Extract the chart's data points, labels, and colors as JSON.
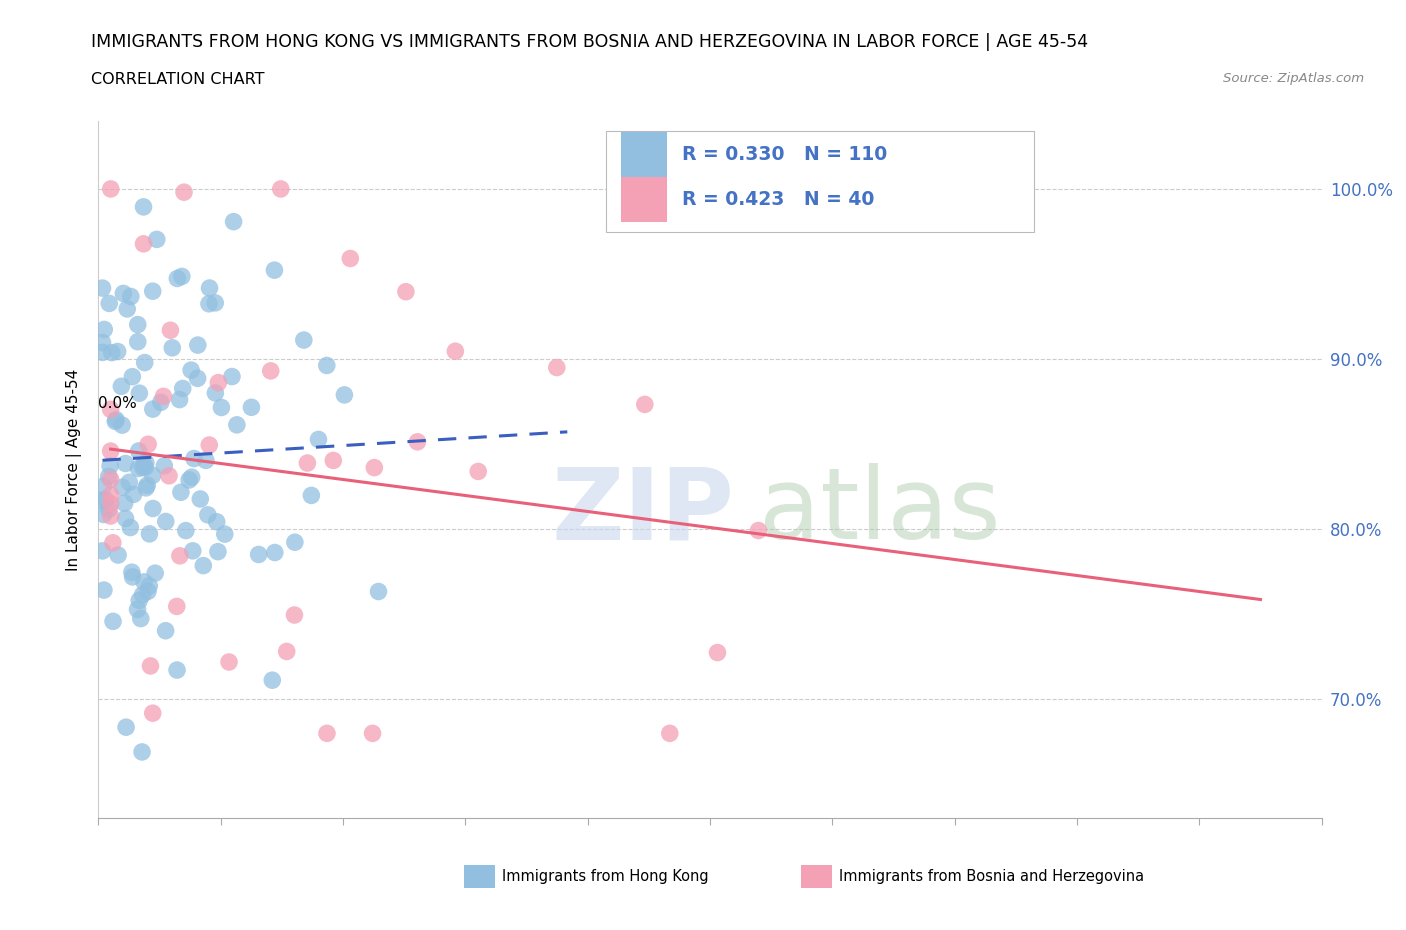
{
  "title": "IMMIGRANTS FROM HONG KONG VS IMMIGRANTS FROM BOSNIA AND HERZEGOVINA IN LABOR FORCE | AGE 45-54",
  "subtitle": "CORRELATION CHART",
  "source": "Source: ZipAtlas.com",
  "ylabel": "In Labor Force | Age 45-54",
  "legend_label_hk": "Immigrants from Hong Kong",
  "legend_label_bh": "Immigrants from Bosnia and Herzegovina",
  "R_hk": 0.33,
  "N_hk": 110,
  "R_bh": 0.423,
  "N_bh": 40,
  "color_hk": "#92BFE0",
  "color_bh": "#F4A0B5",
  "line_color_hk": "#3A5FBF",
  "line_color_bh": "#E8607A",
  "xmin": 0.0,
  "xmax": 0.3,
  "ymin": 0.63,
  "ymax": 1.04,
  "ytick_values": [
    0.7,
    0.8,
    0.9,
    1.0
  ],
  "watermark_color": "#C8D8EC"
}
